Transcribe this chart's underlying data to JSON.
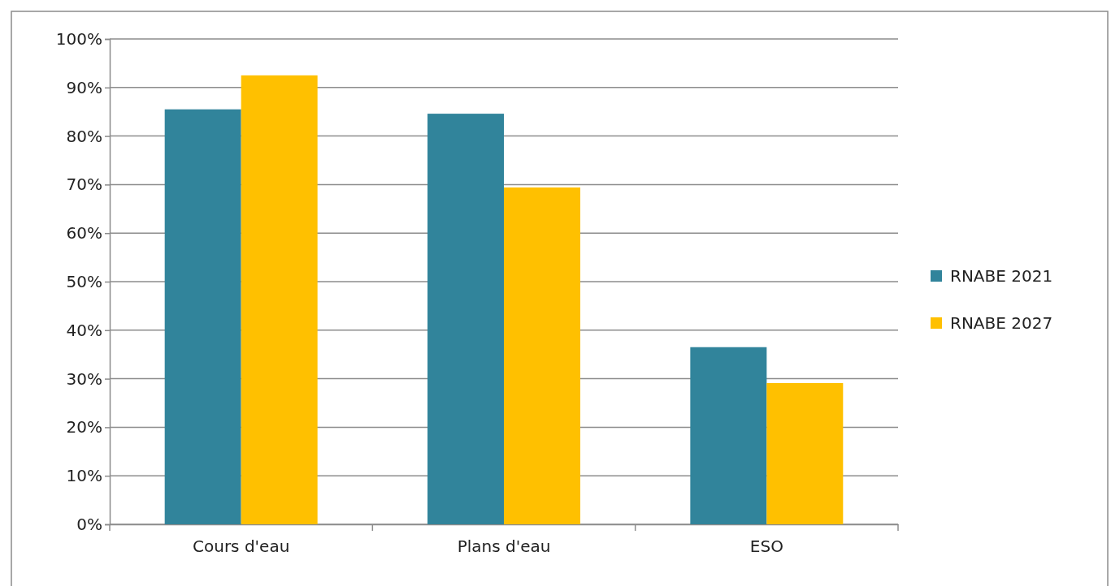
{
  "chart_data": {
    "type": "bar",
    "categories": [
      "Cours d'eau",
      "Plans d'eau",
      "ESO"
    ],
    "series": [
      {
        "name": "RNABE 2021",
        "color": "#31849b",
        "values": [
          85.5,
          84.6,
          36.5
        ]
      },
      {
        "name": "RNABE 2027",
        "color": "#ffc000",
        "values": [
          92.5,
          69.4,
          29.1
        ]
      }
    ],
    "ylim": [
      0,
      100
    ],
    "yticks": [
      {
        "value": 0,
        "label": "0%"
      },
      {
        "value": 10,
        "label": "10%"
      },
      {
        "value": 20,
        "label": "20%"
      },
      {
        "value": 30,
        "label": "30%"
      },
      {
        "value": 40,
        "label": "40%"
      },
      {
        "value": 50,
        "label": "50%"
      },
      {
        "value": 60,
        "label": "60%"
      },
      {
        "value": 70,
        "label": "70%"
      },
      {
        "value": 80,
        "label": "80%"
      },
      {
        "value": 90,
        "label": "90%"
      },
      {
        "value": 100,
        "label": "100%"
      }
    ],
    "grid": "y",
    "legend": "right"
  }
}
